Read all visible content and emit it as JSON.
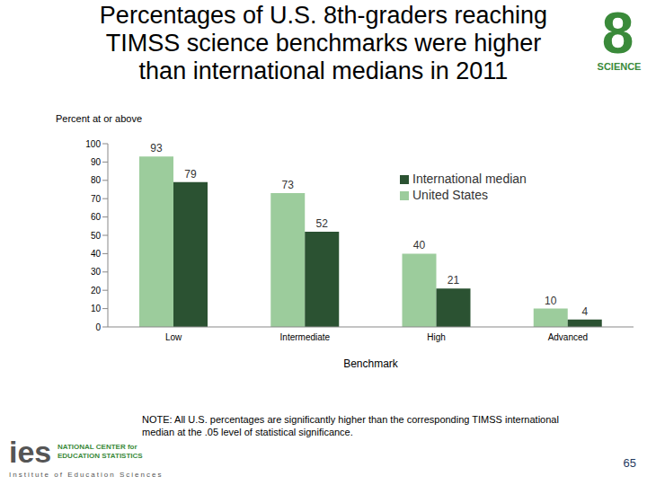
{
  "chart_data": {
    "type": "bar",
    "title": "Percentages of U.S. 8th-graders reaching TIMSS science benchmarks were higher than international medians in 2011",
    "y_label": "Percent at or above",
    "x_label": "Benchmark",
    "categories": [
      "Low",
      "Intermediate",
      "High",
      "Advanced"
    ],
    "series": [
      {
        "name": "United States",
        "color": "#9ccc9c",
        "values": [
          93,
          73,
          40,
          10
        ]
      },
      {
        "name": "International median",
        "color": "#2b5232",
        "values": [
          79,
          52,
          21,
          4
        ]
      }
    ],
    "ylim": [
      0,
      100
    ],
    "yticks": [
      0,
      10,
      20,
      30,
      40,
      50,
      60,
      70,
      80,
      90,
      100
    ],
    "grid": false,
    "legend": "upper right",
    "data_labels": true,
    "note": "NOTE: All U.S. percentages are significantly higher than the corresponding TIMSS international median at the .05 level of statistical significance.",
    "badge": [
      "8",
      "SCIENCE"
    ],
    "logo": [
      "ies",
      "NATIONAL CENTER for EDUCATION STATISTICS",
      "Institute of Education Sciences"
    ],
    "page_number": 65
  }
}
